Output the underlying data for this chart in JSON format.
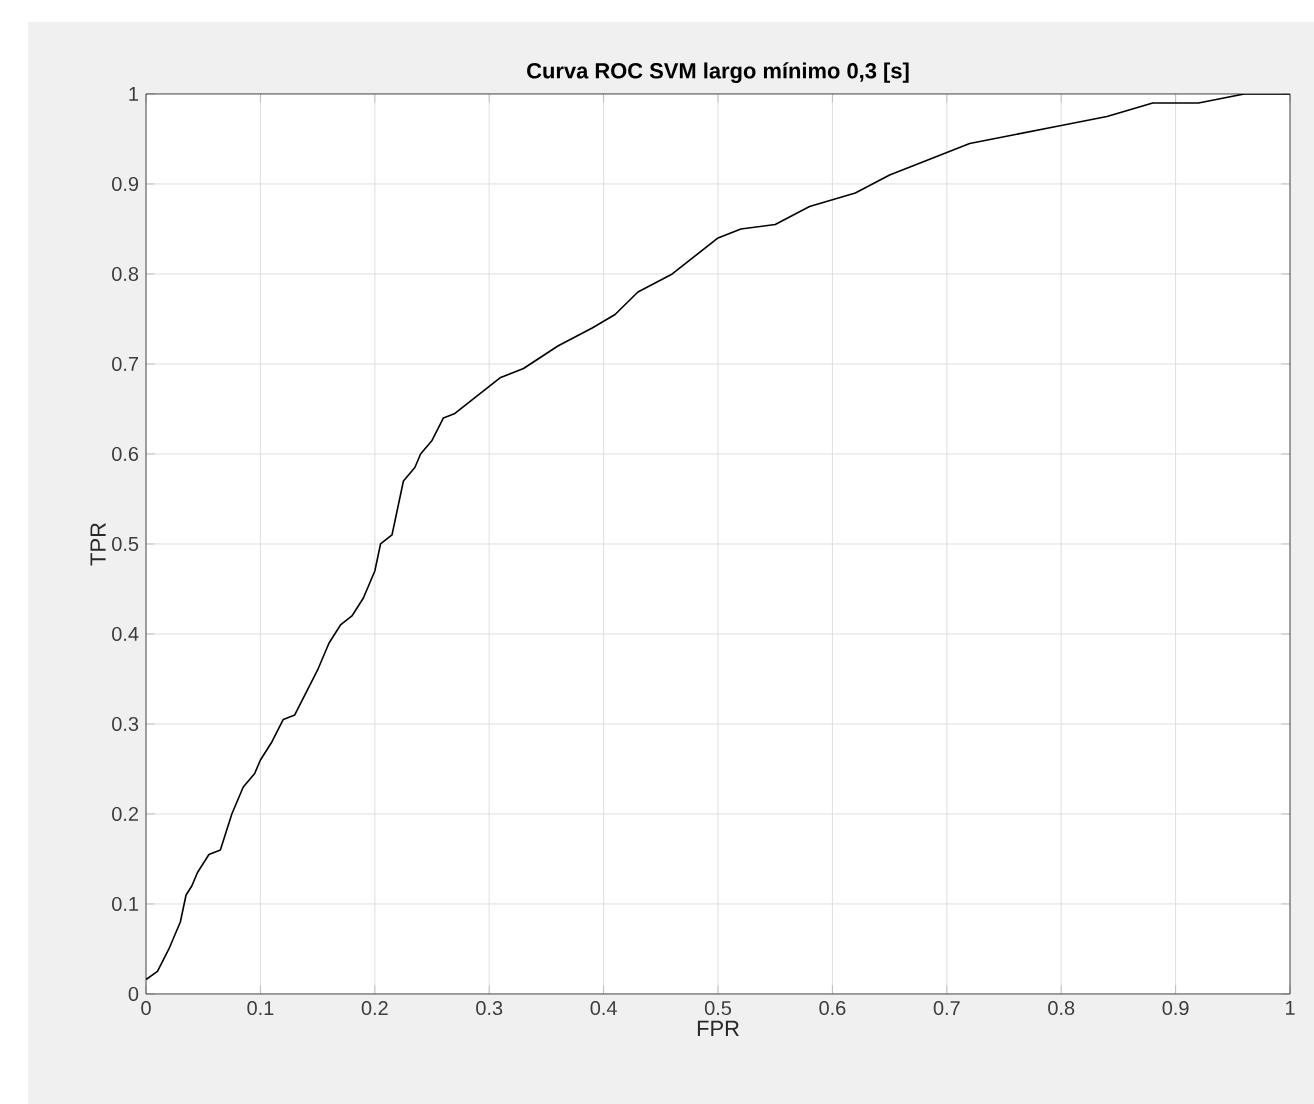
{
  "chart_data": {
    "type": "line",
    "title": "Curva ROC SVM largo mínimo 0,3 [s]",
    "xlabel": "FPR",
    "ylabel": "TPR",
    "xlim": [
      0,
      1
    ],
    "ylim": [
      0,
      1
    ],
    "xticks": [
      0,
      0.1,
      0.2,
      0.3,
      0.4,
      0.5,
      0.6,
      0.7,
      0.8,
      0.9,
      1
    ],
    "yticks": [
      0,
      0.1,
      0.2,
      0.3,
      0.4,
      0.5,
      0.6,
      0.7,
      0.8,
      0.9,
      1
    ],
    "grid": true,
    "marker": "none",
    "line_style": "solid",
    "series": [
      {
        "color": "#000000",
        "x": [
          0,
          0.01,
          0.02,
          0.03,
          0.035,
          0.04,
          0.045,
          0.055,
          0.065,
          0.075,
          0.085,
          0.095,
          0.1,
          0.11,
          0.12,
          0.13,
          0.14,
          0.15,
          0.16,
          0.17,
          0.18,
          0.19,
          0.2,
          0.205,
          0.215,
          0.22,
          0.225,
          0.235,
          0.24,
          0.25,
          0.26,
          0.27,
          0.29,
          0.31,
          0.33,
          0.36,
          0.39,
          0.41,
          0.43,
          0.46,
          0.48,
          0.5,
          0.52,
          0.55,
          0.58,
          0.62,
          0.65,
          0.67,
          0.7,
          0.72,
          0.76,
          0.8,
          0.84,
          0.88,
          0.92,
          0.96,
          1
        ],
        "values": [
          0.016,
          0.025,
          0.05,
          0.08,
          0.11,
          0.12,
          0.135,
          0.155,
          0.16,
          0.2,
          0.23,
          0.245,
          0.26,
          0.28,
          0.305,
          0.31,
          0.335,
          0.36,
          0.39,
          0.41,
          0.42,
          0.44,
          0.47,
          0.5,
          0.51,
          0.54,
          0.57,
          0.585,
          0.6,
          0.615,
          0.64,
          0.645,
          0.665,
          0.685,
          0.695,
          0.72,
          0.74,
          0.755,
          0.78,
          0.8,
          0.82,
          0.84,
          0.85,
          0.855,
          0.875,
          0.89,
          0.91,
          0.92,
          0.935,
          0.945,
          0.955,
          0.965,
          0.975,
          0.99,
          0.99,
          1.0,
          1.0
        ]
      }
    ]
  }
}
